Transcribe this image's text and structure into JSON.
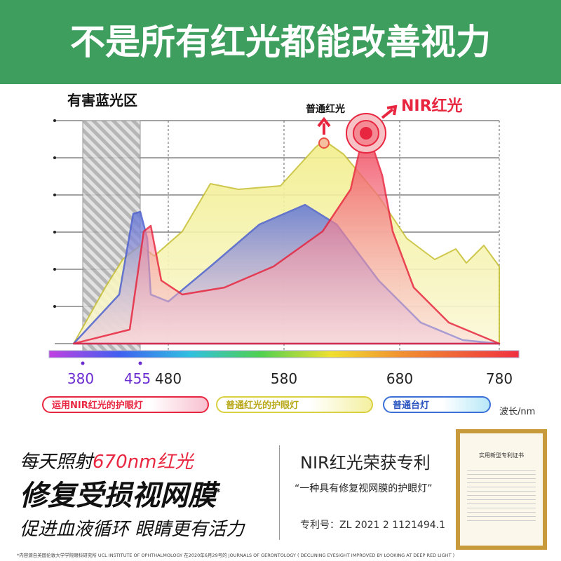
{
  "header": {
    "title": "不是所有红光都能改善视力"
  },
  "chart": {
    "zone_label": "有害蓝光区",
    "annotation_normal": "普通红光",
    "annotation_nir": "NIR红光",
    "x_labels": [
      "380",
      "455",
      "480",
      "580",
      "680",
      "780"
    ],
    "unit": "波长/nm"
  },
  "legend": [
    "运用NIR红光的护眼灯",
    "普通红光的护眼灯",
    "普通台灯"
  ],
  "left": {
    "line1": "每天照射",
    "line1_highlight": "670nm红光",
    "line2": "修复受损视网膜",
    "asterisk": "*",
    "line3": "促进血液循环 眼睛更有活力"
  },
  "right": {
    "title": "NIR红光荣获专利",
    "quote": "“一种具有修复视网膜的护眼灯”",
    "patent": "专利号：ZL 2021 2 1121494.1",
    "certificate": "实用新型专利证书"
  },
  "footnote": "*内容源自英国伦敦大学学院眼科研究所 UCL INSTITUTE OF OPHTHALMOLOGY 在2020年6月29号的 JOURNALS OF GERONTOLOGY ( DECLINING EYESIGHT IMPROVED BY LOOKING AT DEEP RED LIGHT )"
}
